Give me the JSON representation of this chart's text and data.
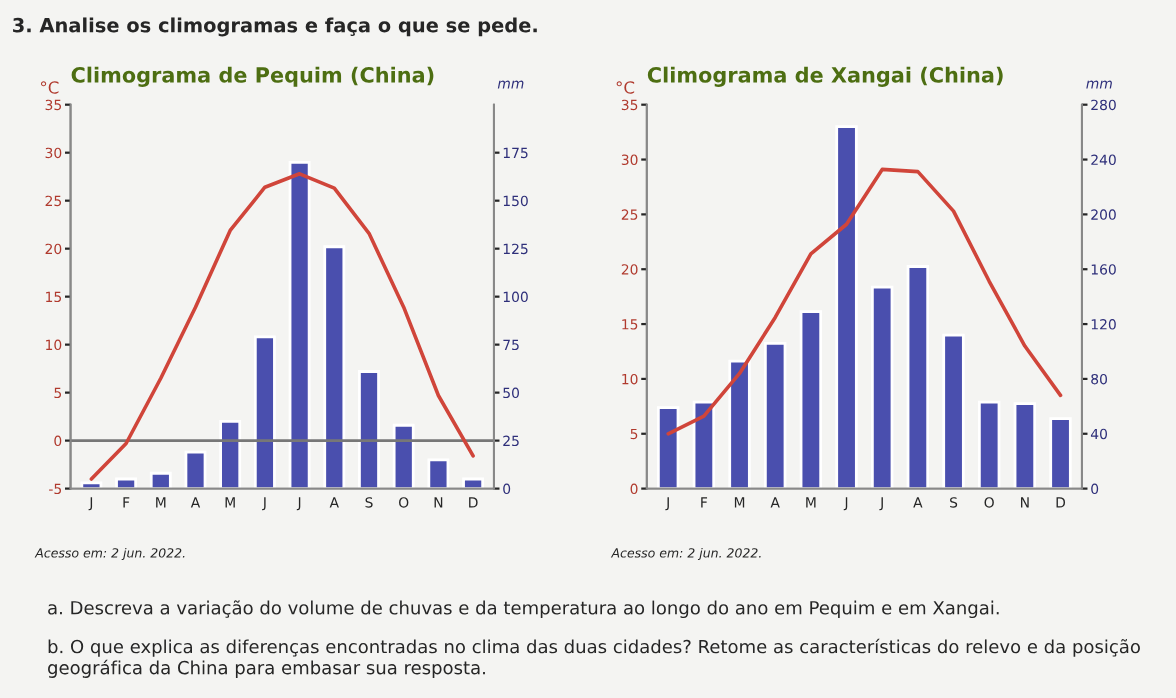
{
  "chart_data": [
    {
      "type": "bar",
      "title": "Climograma de Pequim (China)",
      "ylabel": "°C",
      "y2label": "mm",
      "categories": [
        "J",
        "F",
        "M",
        "A",
        "M",
        "J",
        "J",
        "A",
        "S",
        "O",
        "N",
        "D"
      ],
      "series": [
        {
          "axis": "y2",
          "color": "#4a4fae",
          "values": [
            3,
            5,
            8,
            19,
            35,
            79,
            170,
            126,
            61,
            33,
            15,
            5
          ]
        },
        {
          "type": "line",
          "axis": "y",
          "color": "#d0453a",
          "values": [
            -4.0,
            -0.3,
            6.5,
            13.9,
            21.9,
            26.4,
            27.8,
            26.3,
            21.6,
            13.9,
            4.7,
            -1.6
          ]
        }
      ],
      "ylim": [
        -5,
        35
      ],
      "yticks": [
        -5,
        0,
        5,
        10,
        15,
        20,
        25,
        30,
        35
      ],
      "y2lim": [
        0,
        200
      ],
      "y2ticks": [
        0,
        25,
        50,
        75,
        100,
        125,
        150,
        175
      ],
      "ref_lines": [
        {
          "axis": "y",
          "value": 0,
          "color": "#777777"
        }
      ],
      "annotations": [
        "3. Analise os climogramas e faça o que se pede.",
        "Acesso em: 2 jun. 2022."
      ]
    },
    {
      "type": "bar",
      "title": "Climograma de Xangai (China)",
      "ylabel": "°C",
      "y2label": "mm",
      "categories": [
        "J",
        "F",
        "M",
        "A",
        "M",
        "J",
        "J",
        "A",
        "S",
        "O",
        "N",
        "D"
      ],
      "series": [
        {
          "axis": "y2",
          "color": "#4a4fae",
          "values": [
            59,
            63,
            93,
            106,
            129,
            264,
            147,
            162,
            112,
            63,
            62,
            51
          ]
        },
        {
          "type": "line",
          "axis": "y",
          "color": "#d0453a",
          "values": [
            5.0,
            6.6,
            10.5,
            15.6,
            21.4,
            24.1,
            29.1,
            28.9,
            25.3,
            18.9,
            13.0,
            8.5
          ]
        }
      ],
      "ylim": [
        0,
        35
      ],
      "yticks": [
        0,
        5,
        10,
        15,
        20,
        25,
        30,
        35
      ],
      "y2lim": [
        0,
        280
      ],
      "y2ticks": [
        0,
        40,
        80,
        120,
        160,
        200,
        240,
        280
      ],
      "annotations": [
        "Acesso em: 2 jun. 2022.",
        "a. Descreva a variação do volume de chuvas e da temperatura ao longo do ano em Pequim e em Xangai.",
        "b. O que explica as diferenças encontradas no clima das duas cidades? Retome as características do relevo e da posição geográfica da China para embasar sua resposta."
      ]
    }
  ]
}
